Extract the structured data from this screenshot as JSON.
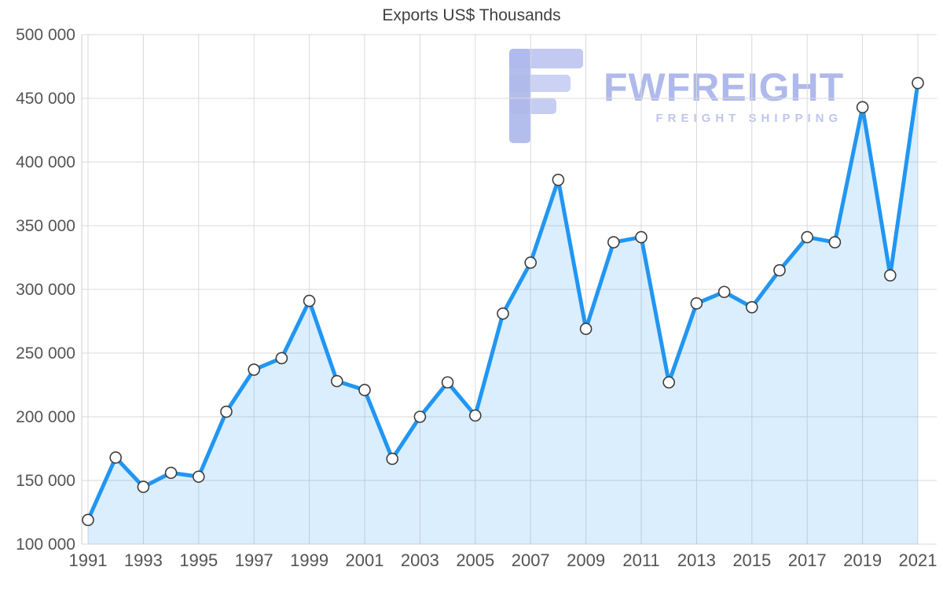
{
  "title": "Exports US$ Thousands",
  "watermark": {
    "brand": "FWFREIGHT",
    "subtitle": "FREIGHT SHIPPING",
    "color": "#aeb9ec"
  },
  "chart_data": {
    "type": "area",
    "title": "Exports US$ Thousands",
    "x": [
      1991,
      1992,
      1993,
      1994,
      1995,
      1996,
      1997,
      1998,
      1999,
      2000,
      2001,
      2002,
      2003,
      2004,
      2005,
      2006,
      2007,
      2008,
      2009,
      2010,
      2011,
      2012,
      2013,
      2014,
      2015,
      2016,
      2017,
      2018,
      2019,
      2020,
      2021
    ],
    "values": [
      119000,
      168000,
      145000,
      156000,
      153000,
      204000,
      237000,
      246000,
      291000,
      228000,
      221000,
      167000,
      200000,
      227000,
      201000,
      281000,
      321000,
      386000,
      269000,
      337000,
      341000,
      227000,
      289000,
      298000,
      286000,
      315000,
      341000,
      337000,
      443000,
      311000,
      462000
    ],
    "ylim": [
      100000,
      500000
    ],
    "yticks": [
      100000,
      150000,
      200000,
      250000,
      300000,
      350000,
      400000,
      450000,
      500000
    ],
    "xticks": [
      1991,
      1993,
      1995,
      1997,
      1999,
      2001,
      2003,
      2005,
      2007,
      2009,
      2011,
      2013,
      2015,
      2017,
      2019,
      2021
    ],
    "grid": true,
    "legend": false,
    "xlabel": "",
    "ylabel": "",
    "colors": {
      "line": "#2196f3",
      "fill": "#2196f3",
      "fill_opacity": 0.16,
      "marker_fill": "#ffffff",
      "marker_stroke": "#3d3d3d",
      "grid": "#d9d9d9",
      "axis": "#cccccc",
      "tick_label": "#545454",
      "title": "#404040"
    }
  }
}
